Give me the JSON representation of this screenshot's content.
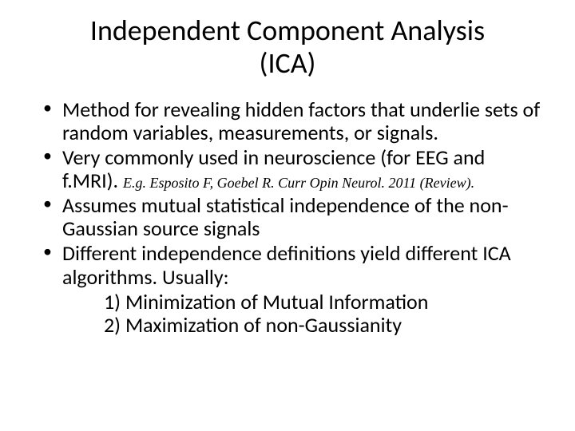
{
  "title_line1": "Independent Component Analysis",
  "title_line2": "(ICA)",
  "bullets": {
    "b1": "Method for revealing hidden factors that underlie sets of random variables, measurements, or signals.",
    "b2_main": "Very commonly used  in neuroscience (for EEG and f.MRI). ",
    "b2_citation": "E.g. Esposito F, Goebel R. Curr Opin Neurol. 2011  (Review).",
    "b3": "Assumes mutual statistical independence of the non-Gaussian source signals",
    "b4": "Different independence definitions yield different ICA algorithms. Usually:",
    "sub1": "1) Minimization of Mutual Information",
    "sub2": "2) Maximization of non-Gaussianity"
  },
  "colors": {
    "background": "#ffffff",
    "text": "#000000"
  },
  "typography": {
    "title_fontsize": 36,
    "body_fontsize": 26,
    "citation_fontsize": 18,
    "body_font": "Calibri",
    "citation_font": "Garamond"
  }
}
